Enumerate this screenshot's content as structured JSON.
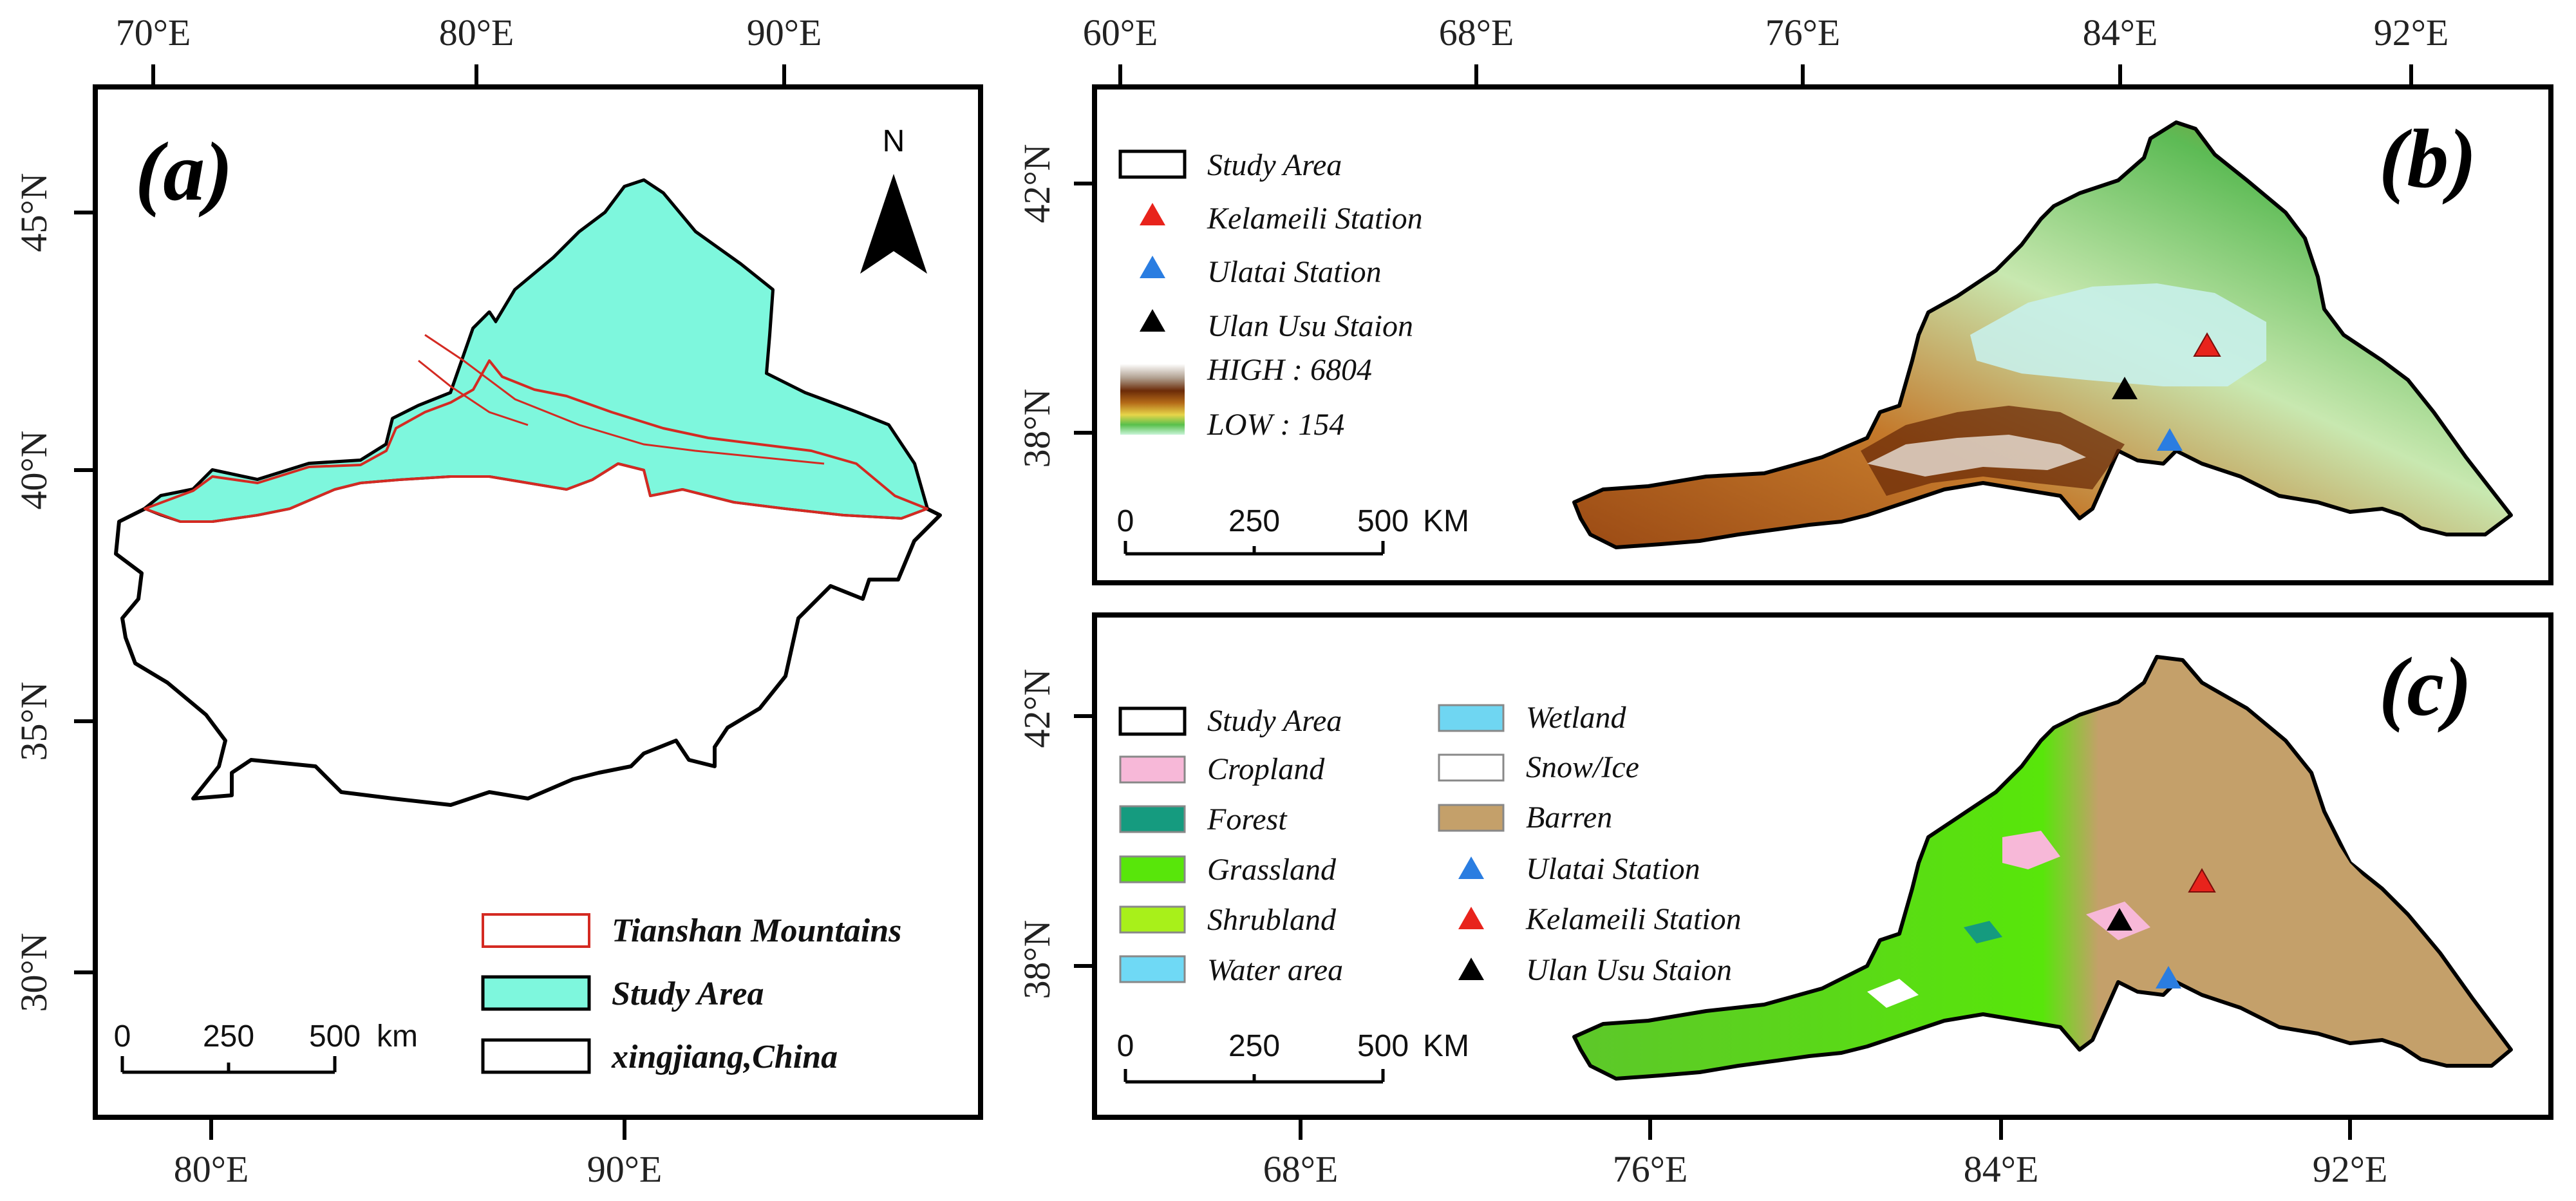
{
  "panels": {
    "a": {
      "letter": "(a)",
      "top_ticks": [
        "70°E",
        "80°E",
        "90°E"
      ],
      "bottom_ticks": [
        "80°E",
        "90°E"
      ],
      "left_ticks": [
        "45°N",
        "40°N",
        "35°N",
        "30°N"
      ],
      "north_label": "N",
      "scale": {
        "zero": "0",
        "mid": "250",
        "max": "500",
        "unit": "km"
      },
      "legend": [
        {
          "label": "Tianshan Mountains",
          "symbol": "red-outline"
        },
        {
          "label": "Study Area",
          "symbol": "turquoise-fill"
        },
        {
          "label": "xingjiang,China",
          "symbol": "black-outline"
        }
      ]
    },
    "b": {
      "letter": "(b)",
      "top_ticks": [
        "60°E",
        "68°E",
        "76°E",
        "84°E",
        "92°E"
      ],
      "left_ticks": [
        "42°N",
        "38°N"
      ],
      "legend": [
        {
          "label": "Study Area",
          "symbol": "outline"
        },
        {
          "label": "Kelameili Station",
          "symbol": "red-triangle"
        },
        {
          "label": "Ulatai Station",
          "symbol": "blue-triangle"
        },
        {
          "label": "Ulan Usu Staion",
          "symbol": "black-triangle"
        }
      ],
      "elevation": {
        "high": "HIGH : 6804",
        "low": "LOW : 154"
      },
      "scale": {
        "zero": "0",
        "mid": "250",
        "max": "500",
        "unit": "KM"
      }
    },
    "c": {
      "letter": "(c)",
      "bottom_ticks": [
        "68°E",
        "76°E",
        "84°E",
        "92°E"
      ],
      "left_ticks": [
        "42°N",
        "38°N"
      ],
      "legend_col1": [
        {
          "label": "Study Area",
          "symbol": "outline"
        },
        {
          "label": "Cropland",
          "symbol": "pink"
        },
        {
          "label": "Forest",
          "symbol": "teal"
        },
        {
          "label": "Grassland",
          "symbol": "green"
        },
        {
          "label": "Shrubland",
          "symbol": "yellowgreen"
        },
        {
          "label": "Water area",
          "symbol": "lightblue"
        }
      ],
      "legend_col2": [
        {
          "label": "Wetland",
          "symbol": "skyblue"
        },
        {
          "label": "Snow/Ice",
          "symbol": "white"
        },
        {
          "label": "Barren",
          "symbol": "tan"
        },
        {
          "label": "Ulatai Station",
          "symbol": "blue-triangle"
        },
        {
          "label": "Kelameili Station",
          "symbol": "red-triangle"
        },
        {
          "label": "Ulan Usu Staion",
          "symbol": "black-triangle"
        }
      ],
      "scale": {
        "zero": "0",
        "mid": "250",
        "max": "500",
        "unit": "KM"
      }
    }
  },
  "colors": {
    "study_area_fill": "#7ef7dd",
    "tianshan_outline": "#d42a22",
    "station_red": "#e8231c",
    "station_blue": "#2a7de1",
    "station_black": "#000000",
    "cropland": "#f7b8d8",
    "forest": "#159b7f",
    "grassland": "#58e60a",
    "shrubland": "#a8f01a",
    "water": "#6fd9f5",
    "wetland": "#6fd6f2",
    "snow": "#ffffff",
    "barren": "#c4a06a"
  }
}
